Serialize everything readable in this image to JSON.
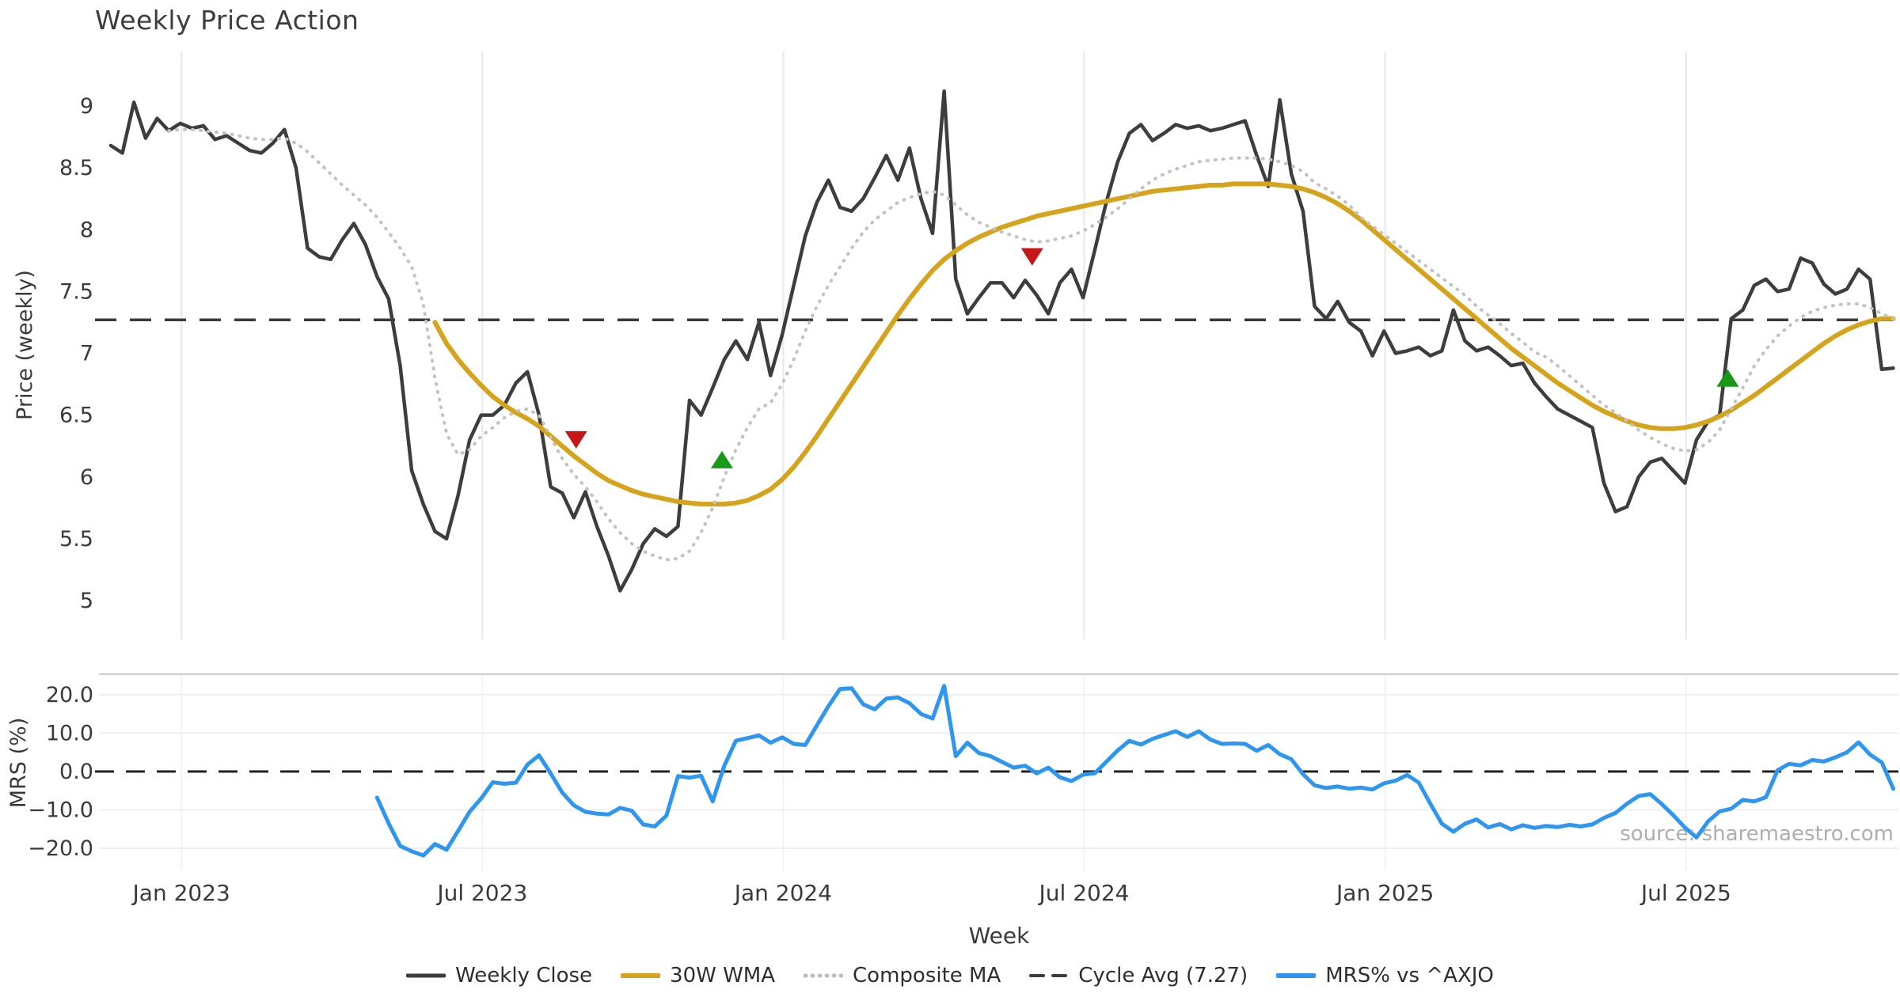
{
  "title": "Weekly Price Action",
  "watermark": "source: sharemaestro.com",
  "x_axis": {
    "label": "Week",
    "ticks": [
      {
        "label": "Jan 2023",
        "week": 6.1
      },
      {
        "label": "Jul 2023",
        "week": 32.1
      },
      {
        "label": "Jan 2024",
        "week": 58.1
      },
      {
        "label": "Jul 2024",
        "week": 84.1
      },
      {
        "label": "Jan 2025",
        "week": 110.1
      },
      {
        "label": "Jul 2025",
        "week": 136.1
      }
    ],
    "weeks_total": 155
  },
  "legend": {
    "items": [
      {
        "label": "Weekly Close",
        "color": "#3d3d3d",
        "dash": "",
        "width": 5
      },
      {
        "label": "30W WMA",
        "color": "#d5a31c",
        "dash": "",
        "width": 6
      },
      {
        "label": "Composite MA",
        "color": "#bdbdbd",
        "dash": "1 8",
        "width": 5
      },
      {
        "label": "Cycle Avg (7.27)",
        "color": "#3d3d3d",
        "dash": "16 12",
        "width": 4
      },
      {
        "label": "MRS% vs ^AXJO",
        "color": "#2e96ee",
        "dash": "",
        "width": 6
      }
    ]
  },
  "chart_data": [
    {
      "type": "line",
      "panel": "price",
      "ylabel": "Price (weekly)",
      "ylim": [
        4.7,
        9.45
      ],
      "grid": "vertical",
      "cycle_avg": 7.27,
      "yticks": [
        {
          "label": "9",
          "value": 9
        },
        {
          "label": "8.5",
          "value": 8.5
        },
        {
          "label": "8",
          "value": 8
        },
        {
          "label": "7.5",
          "value": 7.5
        },
        {
          "label": "7",
          "value": 7
        },
        {
          "label": "6.5",
          "value": 6.5
        },
        {
          "label": "6",
          "value": 6
        },
        {
          "label": "5.5",
          "value": 5.5
        },
        {
          "label": "5",
          "value": 5
        }
      ],
      "series": [
        {
          "name": "Weekly Close",
          "key": "weekly-close",
          "color": "#3d3d3d",
          "width": 4.5,
          "dash": "",
          "start_week": 0,
          "values": [
            8.68,
            8.62,
            9.03,
            8.74,
            8.9,
            8.8,
            8.86,
            8.82,
            8.84,
            8.73,
            8.76,
            8.7,
            8.64,
            8.62,
            8.7,
            8.81,
            8.5,
            7.85,
            7.78,
            7.76,
            7.92,
            8.05,
            7.88,
            7.62,
            7.44,
            6.9,
            6.05,
            5.78,
            5.56,
            5.5,
            5.85,
            6.3,
            6.5,
            6.5,
            6.58,
            6.76,
            6.85,
            6.5,
            5.92,
            5.87,
            5.67,
            5.88,
            5.6,
            5.36,
            5.08,
            5.25,
            5.46,
            5.58,
            5.52,
            5.6,
            6.62,
            6.5,
            6.72,
            6.95,
            7.1,
            6.95,
            7.25,
            6.82,
            7.15,
            7.55,
            7.95,
            8.22,
            8.4,
            8.18,
            8.15,
            8.25,
            8.42,
            8.6,
            8.4,
            8.66,
            8.25,
            7.97,
            9.12,
            7.6,
            7.32,
            7.45,
            7.57,
            7.57,
            7.45,
            7.59,
            7.47,
            7.32,
            7.57,
            7.68,
            7.45,
            7.83,
            8.22,
            8.55,
            8.78,
            8.85,
            8.72,
            8.78,
            8.85,
            8.82,
            8.84,
            8.8,
            8.82,
            8.85,
            8.88,
            8.6,
            8.35,
            9.05,
            8.45,
            8.15,
            7.38,
            7.28,
            7.42,
            7.25,
            7.18,
            6.98,
            7.18,
            7.0,
            7.02,
            7.05,
            6.98,
            7.02,
            7.35,
            7.1,
            7.02,
            7.05,
            6.98,
            6.9,
            6.92,
            6.76,
            6.65,
            6.55,
            6.5,
            6.45,
            6.4,
            5.95,
            5.72,
            5.76,
            6.0,
            6.12,
            6.15,
            6.05,
            5.95,
            6.3,
            6.45,
            6.5,
            7.28,
            7.35,
            7.55,
            7.6,
            7.5,
            7.52,
            7.77,
            7.73,
            7.56,
            7.48,
            7.52,
            7.68,
            7.6,
            6.87,
            6.88
          ]
        },
        {
          "name": "30W WMA",
          "key": "wma30",
          "color": "#d5a31c",
          "width": 6,
          "dash": "",
          "start_week": 28,
          "values": [
            7.25,
            7.08,
            6.95,
            6.84,
            6.74,
            6.65,
            6.58,
            6.52,
            6.47,
            6.41,
            6.33,
            6.25,
            6.17,
            6.1,
            6.03,
            5.97,
            5.93,
            5.89,
            5.86,
            5.84,
            5.82,
            5.8,
            5.79,
            5.78,
            5.78,
            5.78,
            5.79,
            5.81,
            5.85,
            5.9,
            5.98,
            6.08,
            6.2,
            6.33,
            6.47,
            6.61,
            6.75,
            6.89,
            7.03,
            7.17,
            7.31,
            7.44,
            7.56,
            7.67,
            7.76,
            7.83,
            7.89,
            7.94,
            7.98,
            8.02,
            8.05,
            8.08,
            8.11,
            8.13,
            8.15,
            8.17,
            8.19,
            8.21,
            8.23,
            8.25,
            8.27,
            8.29,
            8.31,
            8.32,
            8.33,
            8.34,
            8.35,
            8.36,
            8.36,
            8.37,
            8.37,
            8.37,
            8.37,
            8.36,
            8.35,
            8.33,
            8.3,
            8.26,
            8.21,
            8.15,
            8.08,
            8.0,
            7.92,
            7.84,
            7.76,
            7.68,
            7.6,
            7.52,
            7.44,
            7.36,
            7.28,
            7.2,
            7.12,
            7.04,
            6.97,
            6.9,
            6.83,
            6.76,
            6.7,
            6.64,
            6.58,
            6.53,
            6.49,
            6.45,
            6.42,
            6.4,
            6.39,
            6.39,
            6.4,
            6.42,
            6.45,
            6.49,
            6.54,
            6.6,
            6.66,
            6.73,
            6.8,
            6.87,
            6.94,
            7.01,
            7.08,
            7.14,
            7.19,
            7.23,
            7.26,
            7.28,
            7.28
          ]
        },
        {
          "name": "Composite MA",
          "key": "composite-ma",
          "color": "#c2c2c2",
          "width": 4,
          "dash": "1 9",
          "start_week": 5,
          "values": [
            8.8,
            8.81,
            8.81,
            8.8,
            8.79,
            8.78,
            8.76,
            8.74,
            8.73,
            8.73,
            8.74,
            8.7,
            8.63,
            8.54,
            8.45,
            8.36,
            8.28,
            8.2,
            8.1,
            7.98,
            7.85,
            7.7,
            7.4,
            6.8,
            6.35,
            6.18,
            6.22,
            6.33,
            6.4,
            6.48,
            6.53,
            6.55,
            6.5,
            6.32,
            6.15,
            6.02,
            5.92,
            5.8,
            5.66,
            5.55,
            5.46,
            5.4,
            5.36,
            5.33,
            5.34,
            5.4,
            5.55,
            5.75,
            6.0,
            6.22,
            6.4,
            6.55,
            6.6,
            6.75,
            6.95,
            7.18,
            7.38,
            7.55,
            7.7,
            7.85,
            7.98,
            8.08,
            8.15,
            8.22,
            8.26,
            8.29,
            8.31,
            8.28,
            8.2,
            8.12,
            8.06,
            8.02,
            7.98,
            7.95,
            7.92,
            7.9,
            7.91,
            7.93,
            7.95,
            7.99,
            8.04,
            8.1,
            8.17,
            8.25,
            8.33,
            8.4,
            8.45,
            8.49,
            8.52,
            8.55,
            8.56,
            8.57,
            8.58,
            8.58,
            8.58,
            8.57,
            8.55,
            8.52,
            8.47,
            8.38,
            8.33,
            8.27,
            8.2,
            8.1,
            8.03,
            7.96,
            7.89,
            7.82,
            7.75,
            7.68,
            7.61,
            7.54,
            7.47,
            7.38,
            7.31,
            7.24,
            7.16,
            7.09,
            7.01,
            6.97,
            6.9,
            6.82,
            6.74,
            6.66,
            6.58,
            6.52,
            6.45,
            6.38,
            6.32,
            6.27,
            6.23,
            6.21,
            6.22,
            6.28,
            6.38,
            6.55,
            6.72,
            6.9,
            7.03,
            7.14,
            7.22,
            7.29,
            7.34,
            7.37,
            7.39,
            7.4,
            7.4,
            7.37,
            7.32,
            7.28
          ]
        }
      ],
      "markers": [
        {
          "shape": "triangle-down",
          "meaning": "sell-signal",
          "x_week": 40.2,
          "value": 6.3,
          "color": "#c51717"
        },
        {
          "shape": "triangle-up",
          "meaning": "buy-signal",
          "x_week": 52.8,
          "value": 6.14,
          "color": "#189a18"
        },
        {
          "shape": "triangle-down",
          "meaning": "sell-signal",
          "x_week": 79.6,
          "value": 7.78,
          "color": "#c51717"
        },
        {
          "shape": "triangle-up",
          "meaning": "buy-signal",
          "x_week": 139.7,
          "value": 6.8,
          "color": "#189a18"
        }
      ]
    },
    {
      "type": "line",
      "panel": "mrs",
      "ylabel": "MRS (%)",
      "ylim": [
        -25,
        25
      ],
      "grid": "horizontal",
      "zero_line": 0.0,
      "yticks": [
        {
          "label": "20.0",
          "value": 20
        },
        {
          "label": "10.0",
          "value": 10
        },
        {
          "label": "0.0",
          "value": 0
        },
        {
          "label": "−10.0",
          "value": -10
        },
        {
          "label": "−20.0",
          "value": -20
        }
      ],
      "series": [
        {
          "name": "MRS% vs ^AXJO",
          "key": "mrs-line",
          "color": "#2e96ee",
          "width": 5,
          "dash": "",
          "start_week": 23,
          "values": [
            -6.8,
            -13.5,
            -19.4,
            -20.8,
            -21.9,
            -18.9,
            -20.4,
            -15.5,
            -10.5,
            -7.0,
            -2.8,
            -3.2,
            -2.9,
            1.8,
            4.2,
            -0.5,
            -5.5,
            -8.8,
            -10.5,
            -11.0,
            -11.2,
            -9.5,
            -10.2,
            -13.8,
            -14.3,
            -11.5,
            -1.2,
            -1.6,
            -1.1,
            -7.8,
            1.5,
            8.0,
            8.7,
            9.4,
            7.5,
            8.9,
            7.2,
            6.9,
            12.0,
            17.0,
            21.5,
            21.7,
            17.5,
            16.2,
            19.0,
            19.3,
            17.8,
            15.0,
            13.8,
            22.3,
            4.0,
            7.5,
            4.8,
            4.0,
            2.5,
            1.0,
            1.5,
            -0.5,
            1.0,
            -1.5,
            -2.5,
            -0.8,
            -0.5,
            2.5,
            5.5,
            8.0,
            7.0,
            8.5,
            9.5,
            10.5,
            9.0,
            10.5,
            8.3,
            7.2,
            7.3,
            7.2,
            5.4,
            6.9,
            4.5,
            3.2,
            -0.7,
            -3.6,
            -4.3,
            -3.9,
            -4.5,
            -4.2,
            -4.7,
            -3.1,
            -2.4,
            -0.9,
            -2.9,
            -8.4,
            -13.6,
            -15.7,
            -13.6,
            -12.5,
            -14.6,
            -13.7,
            -15.1,
            -14.0,
            -14.7,
            -14.2,
            -14.5,
            -13.9,
            -14.3,
            -13.8,
            -12.1,
            -10.8,
            -8.4,
            -6.4,
            -5.9,
            -8.5,
            -11.4,
            -14.6,
            -17.2,
            -13.0,
            -10.4,
            -9.7,
            -7.4,
            -7.8,
            -6.7,
            0.3,
            2.0,
            1.6,
            3.0,
            2.6,
            3.7,
            5.0,
            7.6,
            4.4,
            2.4,
            -4.5
          ]
        }
      ]
    }
  ]
}
